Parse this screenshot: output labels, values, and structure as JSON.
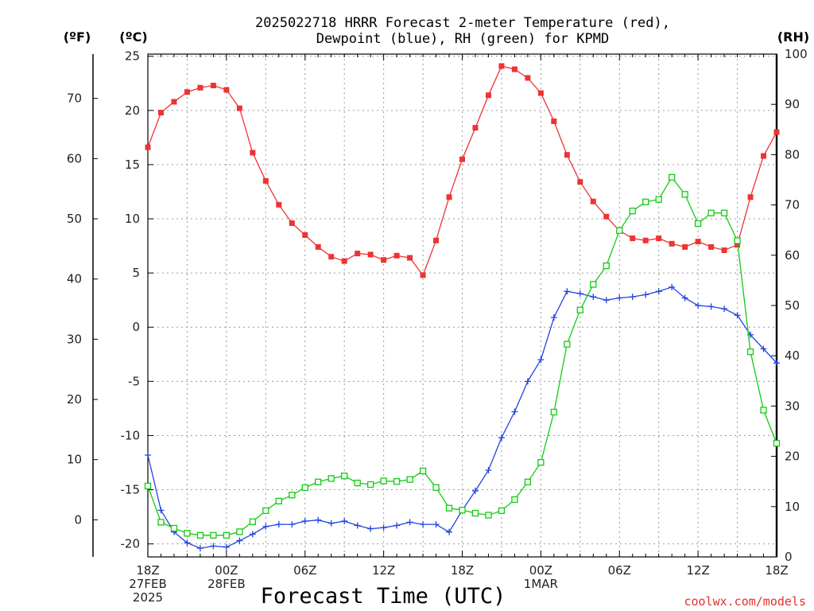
{
  "title": {
    "line1": "2025022718 HRRR Forecast 2-meter Temperature (red),",
    "line2": "Dewpoint (blue), RH (green) for KPMD"
  },
  "units": {
    "fahrenheit": "(ºF)",
    "celsius": "(ºC)",
    "rh": "(RH)"
  },
  "credit": "coolwx.com/models",
  "colors": {
    "temperature": "#ee3333",
    "dewpoint": "#2244dd",
    "rh": "#11cc11",
    "grid": "#9a9a9a"
  },
  "chart_data": {
    "type": "line",
    "title": "2025022718 HRRR Forecast 2-meter Temperature (red), Dewpoint (blue), RH (green) for KPMD",
    "xlabel": "Forecast Time (UTC)",
    "x_hours": [
      0,
      1,
      2,
      3,
      4,
      5,
      6,
      7,
      8,
      9,
      10,
      11,
      12,
      13,
      14,
      15,
      16,
      17,
      18,
      19,
      20,
      21,
      22,
      23,
      24,
      25,
      26,
      27,
      28,
      29,
      30,
      31,
      32,
      33,
      34,
      35,
      36,
      37,
      38,
      39,
      40,
      41,
      42,
      43,
      44,
      45,
      46,
      47,
      48
    ],
    "x_ticks": [
      {
        "hour": 0,
        "lines": [
          "18Z",
          "27FEB",
          "2025"
        ]
      },
      {
        "hour": 6,
        "lines": [
          "00Z",
          "28FEB"
        ]
      },
      {
        "hour": 12,
        "lines": [
          "06Z"
        ]
      },
      {
        "hour": 18,
        "lines": [
          "12Z"
        ]
      },
      {
        "hour": 24,
        "lines": [
          "18Z"
        ]
      },
      {
        "hour": 30,
        "lines": [
          "00Z",
          "1MAR"
        ]
      },
      {
        "hour": 36,
        "lines": [
          "06Z"
        ]
      },
      {
        "hour": 42,
        "lines": [
          "12Z"
        ]
      },
      {
        "hour": 48,
        "lines": [
          "18Z"
        ]
      }
    ],
    "xlim": [
      0,
      48
    ],
    "celsius_axis": {
      "label": "(ºC)",
      "ylim": [
        -21.2,
        25.2
      ],
      "ticks": [
        25,
        20,
        15,
        10,
        5,
        0,
        -5,
        -10,
        -15,
        -20
      ]
    },
    "fahrenheit_axis": {
      "label": "(ºF)",
      "ticks": [
        70,
        60,
        50,
        40,
        30,
        20,
        10,
        0
      ]
    },
    "rh_axis": {
      "label": "(RH)",
      "ylim": [
        0,
        100
      ],
      "ticks": [
        0,
        10,
        20,
        30,
        40,
        50,
        60,
        70,
        80,
        90,
        100
      ]
    },
    "grid": true,
    "series": [
      {
        "name": "Temperature",
        "axis": "celsius",
        "color": "#ee3333",
        "marker": "filled-square",
        "values": [
          16.6,
          19.8,
          20.8,
          21.7,
          22.1,
          22.3,
          21.9,
          20.2,
          16.1,
          13.5,
          11.3,
          9.6,
          8.5,
          7.4,
          6.5,
          6.1,
          6.8,
          6.7,
          6.2,
          6.6,
          6.4,
          4.8,
          8.0,
          12.0,
          15.5,
          18.4,
          21.4,
          24.1,
          23.8,
          23.0,
          21.6,
          19.0,
          15.9,
          13.4,
          11.6,
          10.2,
          8.9,
          8.2,
          8.0,
          8.2,
          7.7,
          7.4,
          7.9,
          7.4,
          7.1,
          7.6,
          12.0,
          15.8,
          18.0
        ]
      },
      {
        "name": "Dewpoint",
        "axis": "celsius",
        "color": "#2244dd",
        "marker": "plus",
        "values": [
          -11.8,
          -16.9,
          -18.9,
          -19.9,
          -20.4,
          -20.2,
          -20.3,
          -19.7,
          -19.1,
          -18.4,
          -18.2,
          -18.2,
          -17.9,
          -17.8,
          -18.1,
          -17.9,
          -18.3,
          -18.6,
          -18.5,
          -18.3,
          -18.0,
          -18.2,
          -18.2,
          -18.9,
          -16.9,
          -15.1,
          -13.2,
          -10.2,
          -7.8,
          -5.0,
          -3.0,
          0.9,
          3.3,
          3.1,
          2.8,
          2.5,
          2.7,
          2.8,
          3.0,
          3.3,
          3.7,
          2.7,
          2.0,
          1.9,
          1.7,
          1.1,
          -0.7,
          -2.0,
          -3.3
        ]
      },
      {
        "name": "RH",
        "axis": "rh",
        "color": "#11cc11",
        "marker": "open-square",
        "values": [
          14.1,
          6.9,
          5.7,
          4.7,
          4.3,
          4.3,
          4.3,
          5.0,
          7.0,
          9.2,
          11.1,
          12.3,
          13.8,
          14.9,
          15.6,
          16.1,
          14.7,
          14.4,
          15.1,
          15.0,
          15.4,
          17.1,
          13.8,
          9.7,
          9.3,
          8.7,
          8.3,
          9.2,
          11.4,
          14.9,
          18.8,
          28.8,
          42.3,
          49.1,
          54.2,
          57.9,
          64.9,
          68.8,
          70.6,
          71.1,
          75.5,
          72.1,
          66.3,
          68.4,
          68.4,
          62.9,
          40.8,
          29.2,
          22.6
        ]
      }
    ]
  }
}
